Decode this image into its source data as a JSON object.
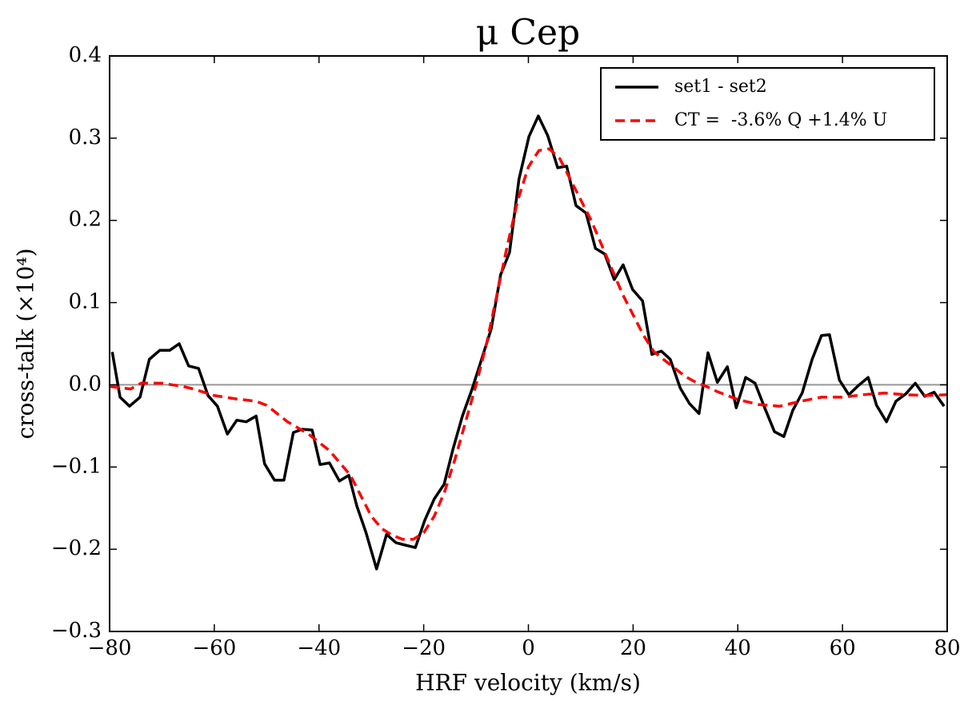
{
  "chart_data": {
    "type": "line",
    "title": "μ Cep",
    "xlabel": "HRF velocity (km/s)",
    "ylabel": "cross-talk (×10⁴)",
    "xlim": [
      -80,
      80
    ],
    "ylim": [
      -0.3,
      0.4
    ],
    "xticks": [
      {
        "value": -80,
        "label": "−80"
      },
      {
        "value": -60,
        "label": "−60"
      },
      {
        "value": -40,
        "label": "−40"
      },
      {
        "value": -20,
        "label": "−20"
      },
      0,
      20,
      40,
      60,
      80
    ],
    "yticks": [
      {
        "value": -0.3,
        "label": "−0.3"
      },
      {
        "value": -0.2,
        "label": "−0.2"
      },
      {
        "value": -0.1,
        "label": "−0.1"
      },
      {
        "value": 0,
        "label": "0.0"
      },
      0.1,
      0.2,
      0.3,
      0.4
    ],
    "hlines": [
      0
    ],
    "legend": "upper right",
    "series": [
      {
        "name": "set1 - set2",
        "color": "#000000",
        "dash": false,
        "x": [
          -79.5,
          -78,
          -76.2,
          -74.2,
          -72.4,
          -70.4,
          -68.5,
          -66.7,
          -64.9,
          -63,
          -61.2,
          -59.4,
          -57.5,
          -55.7,
          -53.9,
          -52,
          -50.4,
          -48.5,
          -46.7,
          -44.9,
          -43.2,
          -41.3,
          -39.8,
          -38,
          -36.1,
          -34.3,
          -32.8,
          -31,
          -29,
          -27.1,
          -25.3,
          -23.5,
          -21.6,
          -19.8,
          -18,
          -16.1,
          -14.4,
          -12.6,
          -10.8,
          -8.9,
          -7.1,
          -5.3,
          -3.6,
          -1.8,
          0.1,
          1.9,
          3.7,
          5.6,
          7.3,
          9.1,
          11,
          12.8,
          14.6,
          16.4,
          18.1,
          19.9,
          21.8,
          23.6,
          25.4,
          27.1,
          29,
          30.8,
          32.6,
          34.3,
          36.1,
          38,
          39.7,
          41.5,
          43.3,
          45.2,
          47,
          48.8,
          50.5,
          52.3,
          54.2,
          56,
          57.5,
          59.4,
          61.2,
          63,
          64.9,
          66.5,
          68.4,
          70.2,
          72.1,
          73.9,
          75.7,
          77.5,
          79.4
        ],
        "values": [
          0.04,
          -0.015,
          -0.026,
          -0.015,
          0.031,
          0.042,
          0.042,
          0.05,
          0.023,
          0.02,
          -0.013,
          -0.026,
          -0.06,
          -0.043,
          -0.045,
          -0.038,
          -0.096,
          -0.116,
          -0.116,
          -0.058,
          -0.054,
          -0.055,
          -0.097,
          -0.095,
          -0.117,
          -0.11,
          -0.147,
          -0.18,
          -0.224,
          -0.182,
          -0.192,
          -0.195,
          -0.198,
          -0.165,
          -0.139,
          -0.121,
          -0.078,
          -0.038,
          -0.006,
          0.032,
          0.068,
          0.134,
          0.161,
          0.25,
          0.302,
          0.327,
          0.303,
          0.264,
          0.266,
          0.218,
          0.209,
          0.166,
          0.159,
          0.128,
          0.146,
          0.116,
          0.102,
          0.037,
          0.041,
          0.031,
          -0.004,
          -0.023,
          -0.035,
          0.039,
          0.003,
          0.022,
          -0.028,
          0.009,
          0.002,
          -0.029,
          -0.057,
          -0.063,
          -0.031,
          -0.01,
          0.031,
          0.06,
          0.061,
          0.006,
          -0.012,
          -0.001,
          0.009,
          -0.025,
          -0.045,
          -0.02,
          -0.011,
          0.002,
          -0.014,
          -0.009,
          -0.026
        ]
      },
      {
        "name": "CT =  -3.6% Q +1.4% U",
        "color": "#ff0000",
        "dash": true,
        "x": [
          -80,
          -76,
          -74,
          -70,
          -66,
          -64,
          -60,
          -56,
          -52,
          -50,
          -48,
          -46,
          -42,
          -38,
          -34,
          -32,
          -30,
          -28,
          -26,
          -24,
          -22,
          -20,
          -18,
          -16,
          -14,
          -12,
          -10,
          -8,
          -6,
          -4,
          -2,
          0,
          2,
          4,
          6,
          8,
          10,
          12,
          14,
          16,
          18,
          20,
          22,
          24,
          26,
          28,
          30,
          32,
          34,
          36,
          38,
          40,
          44,
          48,
          52,
          56,
          60,
          64,
          68,
          72,
          76,
          80
        ],
        "values": [
          -0.002,
          -0.005,
          0.002,
          0.002,
          -0.002,
          -0.005,
          -0.013,
          -0.017,
          -0.02,
          -0.025,
          -0.035,
          -0.045,
          -0.06,
          -0.08,
          -0.11,
          -0.135,
          -0.16,
          -0.175,
          -0.183,
          -0.188,
          -0.188,
          -0.18,
          -0.16,
          -0.13,
          -0.09,
          -0.045,
          0.0,
          0.05,
          0.11,
          0.17,
          0.225,
          0.265,
          0.285,
          0.287,
          0.275,
          0.25,
          0.225,
          0.2,
          0.17,
          0.14,
          0.11,
          0.085,
          0.06,
          0.04,
          0.03,
          0.02,
          0.01,
          0.003,
          -0.002,
          -0.008,
          -0.013,
          -0.018,
          -0.024,
          -0.026,
          -0.02,
          -0.015,
          -0.015,
          -0.012,
          -0.01,
          -0.012,
          -0.013,
          -0.012
        ]
      }
    ]
  }
}
